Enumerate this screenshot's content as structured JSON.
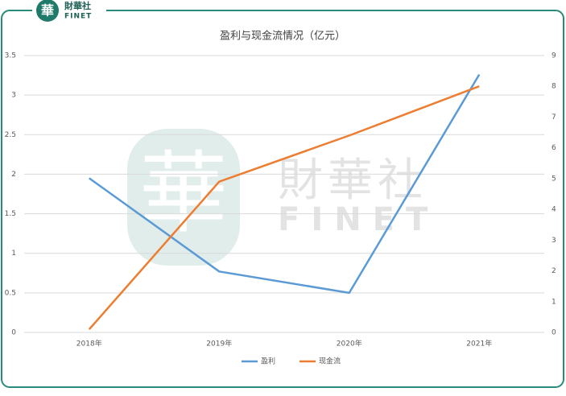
{
  "logo": {
    "name": "財華社",
    "sub": "FINET",
    "mark": "華"
  },
  "chart_data": {
    "type": "line",
    "title": "盈利与现金流情况（亿元）",
    "categories": [
      "2018年",
      "2019年",
      "2020年",
      "2021年"
    ],
    "series": [
      {
        "name": "盈利",
        "color": "#5b9bd5",
        "values": [
          1.95,
          0.77,
          0.5,
          3.26
        ]
      },
      {
        "name": "现金流",
        "color": "#ed7d31",
        "axis": "y2",
        "values": [
          0.1,
          4.9,
          6.4,
          8.0
        ]
      }
    ],
    "ylim": [
      0,
      3.5
    ],
    "yticks": [
      0,
      0.5,
      1,
      1.5,
      2,
      2.5,
      3,
      3.5
    ],
    "y2lim": [
      0,
      9
    ],
    "y2ticks": [
      0,
      1,
      2,
      3,
      4,
      5,
      6,
      7,
      8,
      9
    ],
    "grid": true,
    "legend": "bottom"
  }
}
